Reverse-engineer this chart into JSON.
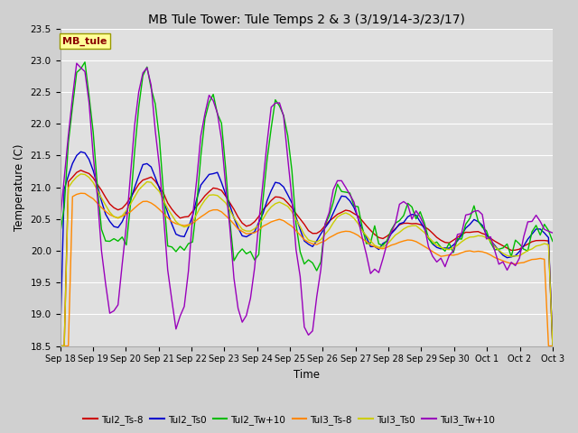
{
  "title": "MB Tule Tower: Tule Temps 2 & 3 (3/19/14-3/23/17)",
  "xlabel": "Time",
  "ylabel": "Temperature (C)",
  "ylim": [
    18.5,
    23.5
  ],
  "yticks": [
    18.5,
    19.0,
    19.5,
    20.0,
    20.5,
    21.0,
    21.5,
    22.0,
    22.5,
    23.0,
    23.5
  ],
  "xtick_labels": [
    "Sep 18",
    "Sep 19",
    "Sep 20",
    "Sep 21",
    "Sep 22",
    "Sep 23",
    "Sep 24",
    "Sep 25",
    "Sep 26",
    "Sep 27",
    "Sep 28",
    "Sep 29",
    "Sep 30",
    "Oct 1",
    "Oct 2",
    "Oct 3"
  ],
  "colors": {
    "Tul2_Ts-8": "#cc0000",
    "Tul2_Ts0": "#0000cc",
    "Tul2_Tw+10": "#00bb00",
    "Tul3_Ts-8": "#ff8800",
    "Tul3_Ts0": "#cccc00",
    "Tul3_Tw+10": "#9900bb"
  },
  "legend_label": "MB_tule",
  "plot_bg_color": "#e0e0e0",
  "fig_bg_color": "#d0d0d0",
  "grid_color": "#ffffff",
  "linewidth": 1.0
}
